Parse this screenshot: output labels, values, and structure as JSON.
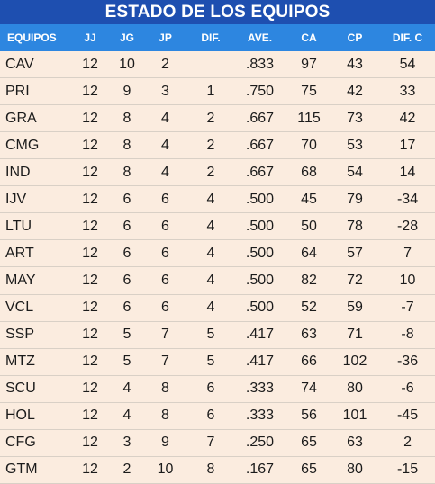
{
  "title": "ESTADO DE LOS EQUIPOS",
  "colors": {
    "title_bg": "#1e4fb0",
    "header_bg": "#2d86e0",
    "row_bg": "#fbecdf",
    "text": "#1b1b1b"
  },
  "headers": [
    "EQUIPOS",
    "JJ",
    "JG",
    "JP",
    "DIF.",
    "AVE.",
    "CA",
    "CP",
    "DIF. C"
  ],
  "rows": [
    {
      "team": "CAV",
      "jj": "12",
      "jg": "10",
      "jp": "2",
      "dif": "",
      "ave": ".833",
      "ca": "97",
      "cp": "43",
      "difc": "54"
    },
    {
      "team": "PRI",
      "jj": "12",
      "jg": "9",
      "jp": "3",
      "dif": "1",
      "ave": ".750",
      "ca": "75",
      "cp": "42",
      "difc": "33"
    },
    {
      "team": "GRA",
      "jj": "12",
      "jg": "8",
      "jp": "4",
      "dif": "2",
      "ave": ".667",
      "ca": "115",
      "cp": "73",
      "difc": "42"
    },
    {
      "team": "CMG",
      "jj": "12",
      "jg": "8",
      "jp": "4",
      "dif": "2",
      "ave": ".667",
      "ca": "70",
      "cp": "53",
      "difc": "17"
    },
    {
      "team": "IND",
      "jj": "12",
      "jg": "8",
      "jp": "4",
      "dif": "2",
      "ave": ".667",
      "ca": "68",
      "cp": "54",
      "difc": "14"
    },
    {
      "team": "IJV",
      "jj": "12",
      "jg": "6",
      "jp": "6",
      "dif": "4",
      "ave": ".500",
      "ca": "45",
      "cp": "79",
      "difc": "-34"
    },
    {
      "team": "LTU",
      "jj": "12",
      "jg": "6",
      "jp": "6",
      "dif": "4",
      "ave": ".500",
      "ca": "50",
      "cp": "78",
      "difc": "-28"
    },
    {
      "team": "ART",
      "jj": "12",
      "jg": "6",
      "jp": "6",
      "dif": "4",
      "ave": ".500",
      "ca": "64",
      "cp": "57",
      "difc": "7"
    },
    {
      "team": "MAY",
      "jj": "12",
      "jg": "6",
      "jp": "6",
      "dif": "4",
      "ave": ".500",
      "ca": "82",
      "cp": "72",
      "difc": "10"
    },
    {
      "team": "VCL",
      "jj": "12",
      "jg": "6",
      "jp": "6",
      "dif": "4",
      "ave": ".500",
      "ca": "52",
      "cp": "59",
      "difc": "-7"
    },
    {
      "team": "SSP",
      "jj": "12",
      "jg": "5",
      "jp": "7",
      "dif": "5",
      "ave": ".417",
      "ca": "63",
      "cp": "71",
      "difc": "-8"
    },
    {
      "team": "MTZ",
      "jj": "12",
      "jg": "5",
      "jp": "7",
      "dif": "5",
      "ave": ".417",
      "ca": "66",
      "cp": "102",
      "difc": "-36"
    },
    {
      "team": "SCU",
      "jj": "12",
      "jg": "4",
      "jp": "8",
      "dif": "6",
      "ave": ".333",
      "ca": "74",
      "cp": "80",
      "difc": "-6"
    },
    {
      "team": "HOL",
      "jj": "12",
      "jg": "4",
      "jp": "8",
      "dif": "6",
      "ave": ".333",
      "ca": "56",
      "cp": "101",
      "difc": "-45"
    },
    {
      "team": "CFG",
      "jj": "12",
      "jg": "3",
      "jp": "9",
      "dif": "7",
      "ave": ".250",
      "ca": "65",
      "cp": "63",
      "difc": "2"
    },
    {
      "team": "GTM",
      "jj": "12",
      "jg": "2",
      "jp": "10",
      "dif": "8",
      "ave": ".167",
      "ca": "65",
      "cp": "80",
      "difc": "-15"
    }
  ]
}
